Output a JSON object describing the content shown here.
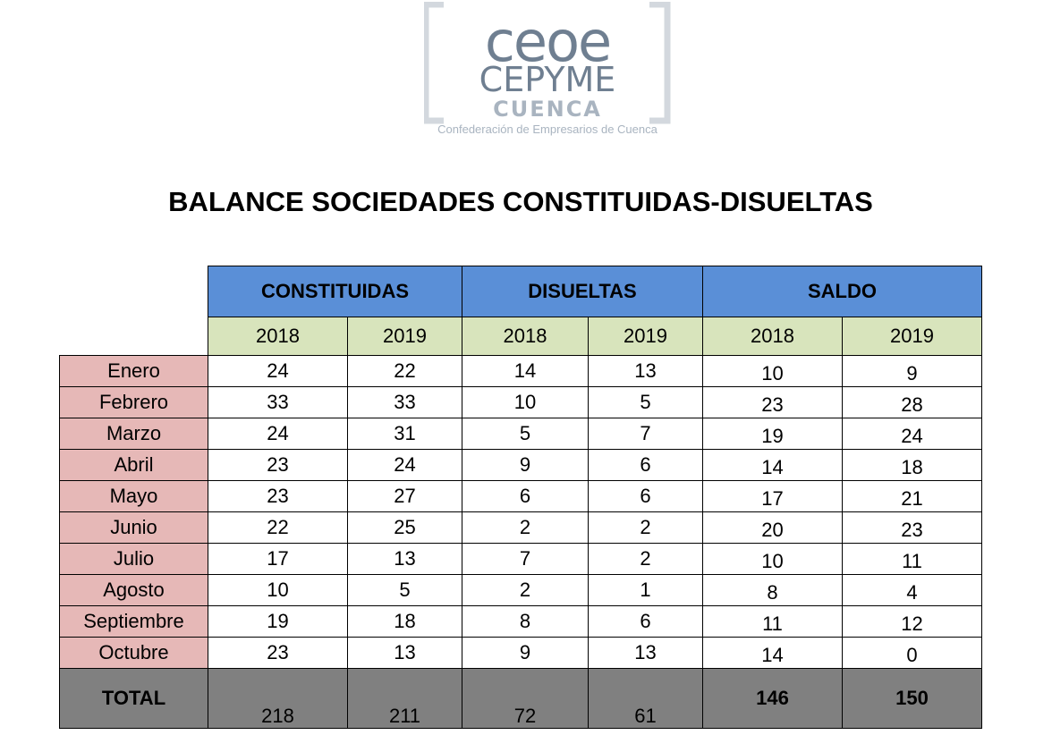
{
  "logo": {
    "line1": "ceoe",
    "line2": "CEPYME",
    "line3": "CUENCA",
    "tagline": "Confederación de Empresarios de Cuenca"
  },
  "title": "BALANCE SOCIEDADES CONSTITUIDAS-DISUELTAS",
  "table": {
    "groups": [
      "CONSTITUIDAS",
      "DISUELTAS",
      "SALDO"
    ],
    "years": [
      2018,
      2019,
      2018,
      2019,
      2018,
      2019
    ],
    "rows": [
      [
        "Enero",
        24,
        22,
        14,
        13,
        10,
        9
      ],
      [
        "Febrero",
        33,
        33,
        10,
        5,
        23,
        28
      ],
      [
        "Marzo",
        24,
        31,
        5,
        7,
        19,
        24
      ],
      [
        "Abril",
        23,
        24,
        9,
        6,
        14,
        18
      ],
      [
        "Mayo",
        23,
        27,
        6,
        6,
        17,
        21
      ],
      [
        "Junio",
        22,
        25,
        2,
        2,
        20,
        23
      ],
      [
        "Julio",
        17,
        13,
        7,
        2,
        10,
        11
      ],
      [
        "Agosto",
        10,
        5,
        2,
        1,
        8,
        4
      ],
      [
        "Septiembre",
        19,
        18,
        8,
        6,
        11,
        12
      ],
      [
        "Octubre",
        23,
        13,
        9,
        13,
        14,
        0
      ]
    ],
    "total": [
      "TOTAL",
      218,
      211,
      72,
      61,
      146,
      150
    ]
  }
}
